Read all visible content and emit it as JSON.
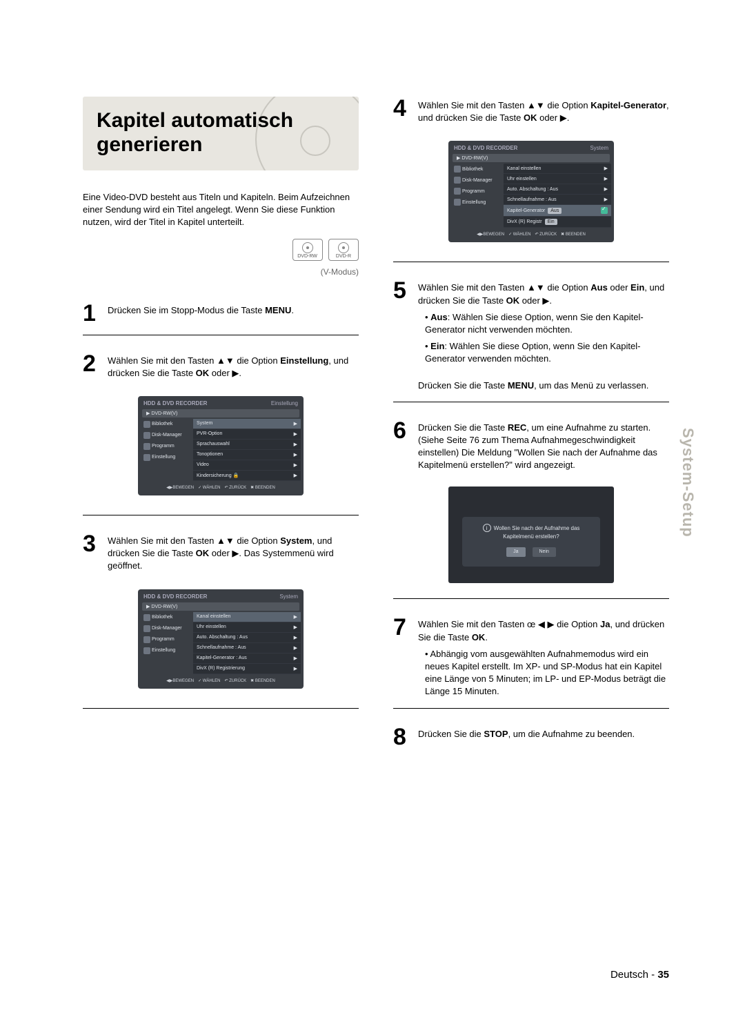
{
  "title": "Kapitel automatisch generieren",
  "intro": "Eine Video-DVD besteht aus Titeln und Kapiteln. Beim Aufzeichnen einer Sendung wird ein Titel angelegt. Wenn Sie diese Funktion nutzen, wird der Titel in Kapitel unterteilt.",
  "badges": {
    "rw": "DVD-RW",
    "r": "DVD-R",
    "vmodus": "(V-Modus)"
  },
  "steps": {
    "s1": "Drücken Sie im Stopp-Modus die Taste MENU.",
    "s2": "Wählen Sie mit den Tasten ▲▼ die Option Einstellung, und drücken Sie die Taste OK oder ▶.",
    "s3": "Wählen Sie mit den Tasten ▲▼ die Option System, und drücken Sie die Taste OK oder ▶. Das Systemmenü wird geöffnet.",
    "s4": "Wählen Sie mit den Tasten ▲▼ die Option Kapitel-Generator, und drücken Sie die Taste OK oder ▶.",
    "s5_a": "Wählen Sie mit den Tasten ▲▼ die Option Aus oder Ein, und drücken Sie die Taste OK oder ▶.",
    "s5_b1": "• Aus: Wählen Sie diese Option, wenn Sie den Kapitel-Generator nicht verwenden möchten.",
    "s5_b2": "• Ein: Wählen Sie diese Option, wenn Sie den Kapitel-Generator verwenden möchten.",
    "s5_c": "Drücken Sie die Taste MENU, um das Menü zu verlassen.",
    "s6": "Drücken Sie die Taste REC, um eine Aufnahme zu starten. (Siehe Seite 76 zum Thema Aufnahmegeschwindigkeit einstellen) Die Meldung \"Wollen Sie nach der Aufnahme das Kapitelmenü erstellen?\" wird angezeigt.",
    "s7_a": "Wählen Sie mit den Tasten œ ◀ ▶ die Option Ja, und drücken Sie die Taste OK.",
    "s7_b": "• Abhängig vom ausgewählten Aufnahmemodus wird ein neues Kapitel erstellt. Im XP- und SP-Modus hat ein Kapitel eine Länge von 5 Minuten; im LP- und EP-Modus beträgt die Länge 15 Minuten.",
    "s8": "Drücken Sie die STOP, um die Aufnahme zu beenden."
  },
  "osd": {
    "header_left": "HDD & DVD RECORDER",
    "mode": "DVD-RW(V)",
    "tabs": {
      "einstellung": "Einstellung",
      "system": "System"
    },
    "nav": [
      "Bibliothek",
      "Disk-Manager",
      "Programm",
      "Einstellung"
    ],
    "list_einstellung": [
      {
        "l": "System",
        "hl": true
      },
      {
        "l": "PVR-Option"
      },
      {
        "l": "Sprachauswahl"
      },
      {
        "l": "Tonoptionen"
      },
      {
        "l": "Video"
      },
      {
        "l": "Kindersicherung 🔒"
      }
    ],
    "list_system": [
      {
        "l": "Kanal einstellen",
        "hl": true
      },
      {
        "l": "Uhr einstellen"
      },
      {
        "l": "Auto. Abschaltung",
        "v": ": Aus"
      },
      {
        "l": "Schnellaufnahme",
        "v": ": Aus"
      },
      {
        "l": "Kapitel-Generator",
        "v": ": Aus"
      },
      {
        "l": "DivX (R) Registrierung"
      }
    ],
    "list_system_kg": [
      {
        "l": "Kanal einstellen"
      },
      {
        "l": "Uhr einstellen"
      },
      {
        "l": "Auto. Abschaltung",
        "v": ": Aus"
      },
      {
        "l": "Schnellaufnahme",
        "v": ": Aus"
      },
      {
        "l": "Kapitel-Generator",
        "drop": "Aus",
        "hl": true,
        "check": true
      },
      {
        "l": "DivX (R) Registr",
        "drop": "Ein"
      }
    ],
    "foot": [
      "◀▶BEWEGEN",
      "✓ WÄHLEN",
      "↶ ZURÜCK",
      "✖ BEENDEN"
    ]
  },
  "prompt": {
    "line1": "Wollen Sie nach der Aufnahme das",
    "line2": "Kapitelmenü erstellen?",
    "ja": "Ja",
    "nein": "Nein"
  },
  "side_tab": "System-Setup",
  "footer_lang": "Deutsch",
  "footer_page": "35",
  "colors": {
    "title_bg": "#e8e6e0",
    "osd_bg": "#3a3e44",
    "osd_list_bg": "#2b2f35",
    "osd_row_hl": "#5a6470",
    "side_tab": "#b9b6ad"
  }
}
